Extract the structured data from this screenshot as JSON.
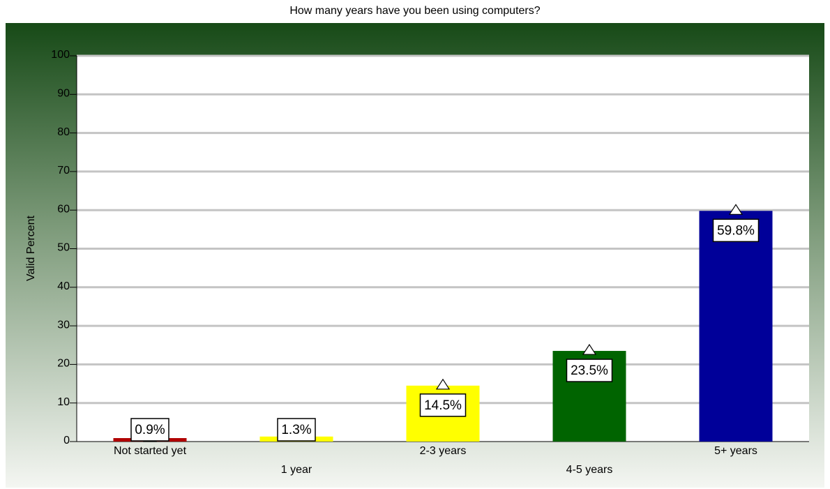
{
  "chart_data": {
    "type": "bar",
    "title": "How many years have you been using computers?",
    "y_label": "Valid Percent",
    "categories": [
      "Not started yet",
      "1 year",
      "2-3 years",
      "4-5 years",
      "5+ years"
    ],
    "values": [
      0.9,
      1.3,
      14.5,
      23.5,
      59.8
    ],
    "value_labels": [
      "0.9%",
      "1.3%",
      "14.5%",
      "23.5%",
      "59.8%"
    ],
    "colors": [
      "#b00000",
      "#ffff00",
      "#ffff00",
      "#006400",
      "#000099"
    ],
    "ylim": [
      0,
      100
    ],
    "yticks": [
      0,
      10,
      20,
      30,
      40,
      50,
      60,
      70,
      80,
      90,
      100
    ],
    "grid": true
  }
}
